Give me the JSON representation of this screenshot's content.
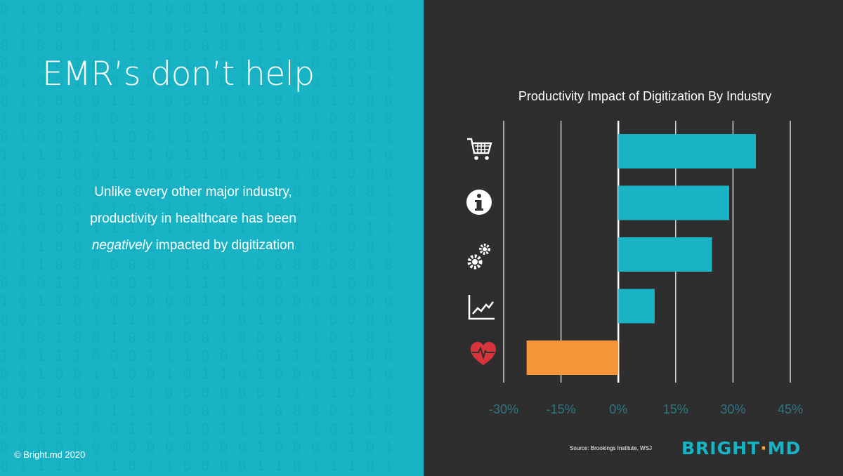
{
  "slide": {
    "title": "EMR’s don’t help",
    "body_line1": "Unlike every other major industry,",
    "body_line2": "productivity in healthcare has been",
    "body_emphasis": "negatively",
    "body_line3_rest": " impacted by digitization",
    "copyright": "© Bright.md  2020",
    "source": "Source: Brookings Institute, WSJ",
    "logo_part1": "BRIGHT",
    "logo_dot": "·",
    "logo_part2": "MD"
  },
  "colors": {
    "left_background": "#18b3c4",
    "right_background": "#2f2e2f",
    "positive_bar": "#18b3c4",
    "negative_bar": "#f7963b",
    "heart_icon": "#d9333b",
    "tick_label": "#2f7583"
  },
  "chart_data": {
    "type": "bar",
    "orientation": "horizontal",
    "title": "Productivity Impact of Digitization By Industry",
    "xlabel": "",
    "ylabel": "",
    "categories": [
      {
        "icon": "shopping-cart-icon"
      },
      {
        "icon": "info-icon"
      },
      {
        "icon": "gears-icon"
      },
      {
        "icon": "line-chart-icon"
      },
      {
        "icon": "heart-pulse-icon"
      }
    ],
    "values": [
      36,
      29,
      24.5,
      9.5,
      -24
    ],
    "xlim": [
      -30,
      45
    ],
    "ticks": [
      -30,
      -15,
      0,
      15,
      30,
      45
    ],
    "tick_labels": [
      "-30%",
      "-15%",
      "0%",
      "15%",
      "30%",
      "45%"
    ],
    "grid": true
  }
}
